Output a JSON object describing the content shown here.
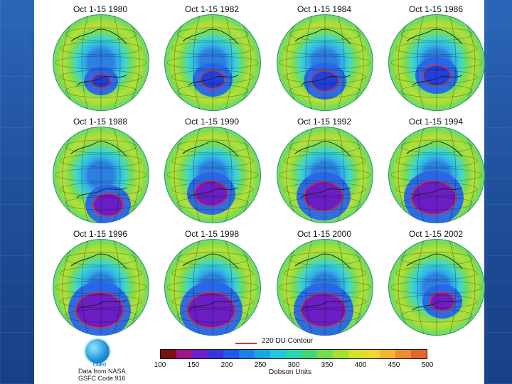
{
  "maps": [
    {
      "title": "Oct 1-15 1980"
    },
    {
      "title": "Oct 1-15 1982"
    },
    {
      "title": "Oct 1-15 1984"
    },
    {
      "title": "Oct 1-15 1986"
    },
    {
      "title": "Oct 1-15 1988"
    },
    {
      "title": "Oct 1-15 1990"
    },
    {
      "title": "Oct 1-15 1992"
    },
    {
      "title": "Oct 1-15 1994"
    },
    {
      "title": "Oct 1-15 1996"
    },
    {
      "title": "Oct 1-15 1998"
    },
    {
      "title": "Oct 1-15 2000"
    },
    {
      "title": "Oct 1-15 2002"
    }
  ],
  "legend": {
    "contour_label": "220 DU Contour",
    "ticks": [
      "100",
      "150",
      "200",
      "250",
      "300",
      "350",
      "400",
      "450",
      "500"
    ],
    "unit": "Dobson Units",
    "colors": [
      "#7a1010",
      "#a0168a",
      "#6a22c8",
      "#3a34d8",
      "#2458e8",
      "#1d7fe8",
      "#18a6e4",
      "#21c7db",
      "#2cd7b0",
      "#43d77a",
      "#73dc4d",
      "#a6df32",
      "#d6e22a",
      "#f1d532",
      "#f0b634",
      "#ee8c2e",
      "#e86426"
    ]
  },
  "brand": {
    "logo_text": "CSIRO",
    "credit_line1": "Data from NASA",
    "credit_line2": "GSFC Code 916"
  }
}
